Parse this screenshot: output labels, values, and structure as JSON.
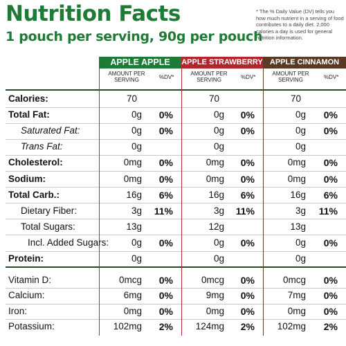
{
  "header": {
    "title": "Nutrition Facts",
    "subtitle": "1 pouch per serving, 90g per pouch",
    "note": "* The % Daily Value (DV) tells you how much nutrient in a serving of food contributes to a daily diet. 2,000 calories a day is used for general nutrition information."
  },
  "table": {
    "columns": [
      {
        "name": "APPLE APPLE",
        "color": "#1e7a34",
        "amount_header": "AMOUNT PER SERVING",
        "dv_header": "%DV*"
      },
      {
        "name": "APPLE STRAWBERRY",
        "color": "#b3262c",
        "amount_header": "AMOUNT PER SERVING",
        "dv_header": "%DV*"
      },
      {
        "name": "APPLE CINNAMON",
        "color": "#5b3a24",
        "amount_header": "AMOUNT PER SERVING",
        "dv_header": "%DV*"
      }
    ],
    "rows": [
      {
        "label": "Calories:",
        "cells": [
          [
            "70",
            null
          ],
          [
            "70",
            null
          ],
          [
            "70",
            null
          ]
        ]
      },
      {
        "label": "Total Fat:",
        "cells": [
          [
            "0g",
            "0%"
          ],
          [
            "0g",
            "0%"
          ],
          [
            "0g",
            "0%"
          ]
        ]
      },
      {
        "label": "Saturated Fat:",
        "cells": [
          [
            "0g",
            "0%"
          ],
          [
            "0g",
            "0%"
          ],
          [
            "0g",
            "0%"
          ]
        ]
      },
      {
        "label": "Trans Fat:",
        "cells": [
          [
            "0g",
            null
          ],
          [
            "0g",
            null
          ],
          [
            "0g",
            null
          ]
        ]
      },
      {
        "label": "Cholesterol:",
        "cells": [
          [
            "0mg",
            "0%"
          ],
          [
            "0mg",
            "0%"
          ],
          [
            "0mg",
            "0%"
          ]
        ]
      },
      {
        "label": "Sodium:",
        "cells": [
          [
            "0mg",
            "0%"
          ],
          [
            "0mg",
            "0%"
          ],
          [
            "0mg",
            "0%"
          ]
        ]
      },
      {
        "label": "Total Carb.:",
        "cells": [
          [
            "16g",
            "6%"
          ],
          [
            "16g",
            "6%"
          ],
          [
            "16g",
            "6%"
          ]
        ]
      },
      {
        "label": "Dietary Fiber:",
        "cells": [
          [
            "3g",
            "11%"
          ],
          [
            "3g",
            "11%"
          ],
          [
            "3g",
            "11%"
          ]
        ]
      },
      {
        "label": "Total Sugars:",
        "cells": [
          [
            "13g",
            null
          ],
          [
            "12g",
            null
          ],
          [
            "13g",
            null
          ]
        ]
      },
      {
        "label": "Incl. Added Sugars:",
        "cells": [
          [
            "0g",
            "0%"
          ],
          [
            "0g",
            "0%"
          ],
          [
            "0g",
            "0%"
          ]
        ]
      },
      {
        "label": "Protein:",
        "cells": [
          [
            "0g",
            null
          ],
          [
            "0g",
            null
          ],
          [
            "0g",
            null
          ]
        ]
      },
      {
        "label": "Vitamin D:",
        "cells": [
          [
            "0mcg",
            "0%"
          ],
          [
            "0mcg",
            "0%"
          ],
          [
            "0mcg",
            "0%"
          ]
        ]
      },
      {
        "label": "Calcium:",
        "cells": [
          [
            "6mg",
            "0%"
          ],
          [
            "9mg",
            "0%"
          ],
          [
            "7mg",
            "0%"
          ]
        ]
      },
      {
        "label": "Iron:",
        "cells": [
          [
            "0mg",
            "0%"
          ],
          [
            "0mg",
            "0%"
          ],
          [
            "0mg",
            "0%"
          ]
        ]
      },
      {
        "label": "Potassium:",
        "cells": [
          [
            "102mg",
            "2%"
          ],
          [
            "124mg",
            "2%"
          ],
          [
            "102mg",
            "2%"
          ]
        ]
      }
    ]
  }
}
